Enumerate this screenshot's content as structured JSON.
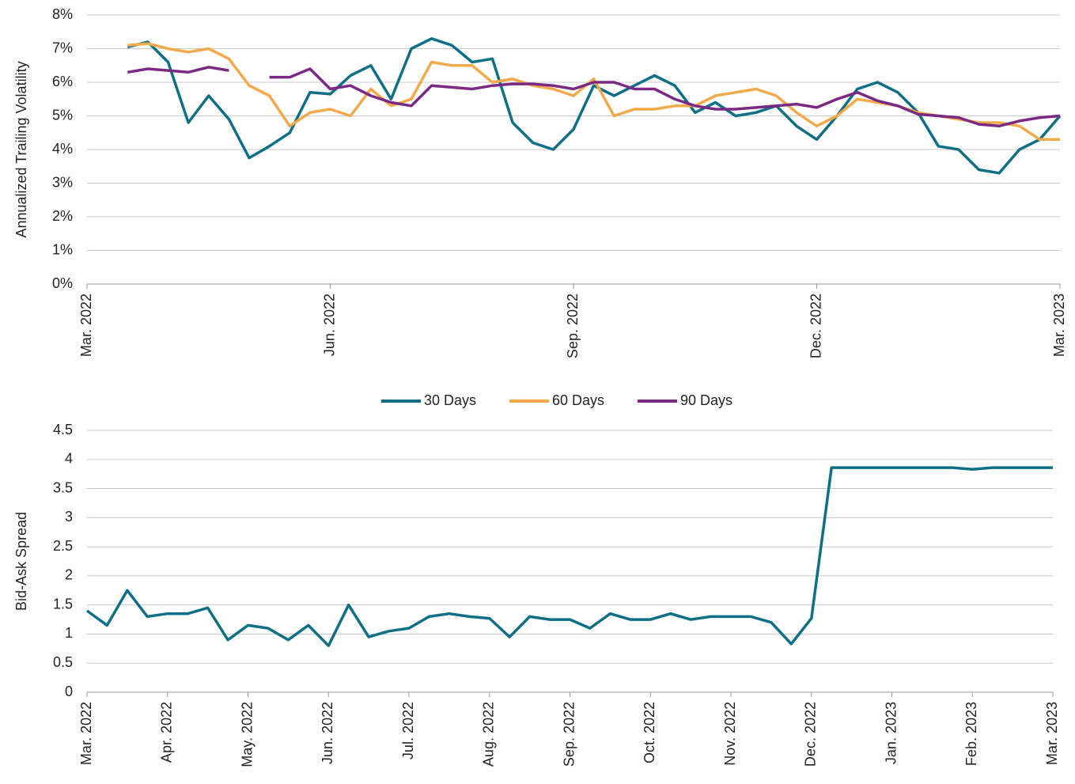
{
  "chart_data": [
    {
      "type": "line",
      "ylabel": "Annualized Trailing Volatility",
      "x": [
        0.5,
        0.75,
        1,
        1.25,
        1.5,
        1.75,
        2,
        2.25,
        2.5,
        2.75,
        3,
        3.25,
        3.5,
        3.75,
        4,
        4.25,
        4.5,
        4.75,
        5,
        5.25,
        5.5,
        5.75,
        6,
        6.25,
        6.5,
        6.75,
        7,
        7.25,
        7.5,
        7.75,
        8,
        8.25,
        8.5,
        8.75,
        9,
        9.25,
        9.5,
        9.75,
        10,
        10.25,
        10.5,
        10.75,
        11,
        11.25,
        11.5,
        11.75,
        12
      ],
      "xlim": [
        0,
        12
      ],
      "xticks": [
        {
          "value": 0,
          "label": "Mar. 2022"
        },
        {
          "value": 3,
          "label": "Jun. 2022"
        },
        {
          "value": 6,
          "label": "Sep. 2022"
        },
        {
          "value": 9,
          "label": "Dec. 2022"
        },
        {
          "value": 12,
          "label": "Mar. 2023"
        }
      ],
      "ylim": [
        0,
        8
      ],
      "yticks": [
        {
          "value": 0,
          "label": "0%"
        },
        {
          "value": 1,
          "label": "1%"
        },
        {
          "value": 2,
          "label": "2%"
        },
        {
          "value": 3,
          "label": "3%"
        },
        {
          "value": 4,
          "label": "4%"
        },
        {
          "value": 5,
          "label": "5%"
        },
        {
          "value": 6,
          "label": "6%"
        },
        {
          "value": 7,
          "label": "7%"
        },
        {
          "value": 8,
          "label": "8%"
        }
      ],
      "grid": true,
      "legend": "bottom",
      "series": [
        {
          "name": "30 Days",
          "color": "#0e6f86",
          "values": [
            7.05,
            7.2,
            6.6,
            4.8,
            5.6,
            4.9,
            3.75,
            4.1,
            4.5,
            5.7,
            5.65,
            6.2,
            6.5,
            5.5,
            7.0,
            7.3,
            7.1,
            6.6,
            6.7,
            4.8,
            4.2,
            4.0,
            4.6,
            5.9,
            5.6,
            5.9,
            6.2,
            5.9,
            5.1,
            5.4,
            5.0,
            5.1,
            5.3,
            4.7,
            4.3,
            5.0,
            5.8,
            6.0,
            5.7,
            5.1,
            4.1,
            4.0,
            3.4,
            3.3,
            4.0,
            4.3,
            5.0
          ]
        },
        {
          "name": "60 Days",
          "color": "#f2a94a",
          "values": [
            7.1,
            7.15,
            7.0,
            6.9,
            7.0,
            6.7,
            5.9,
            5.6,
            4.7,
            5.1,
            5.2,
            5.0,
            5.8,
            5.3,
            5.5,
            6.6,
            6.5,
            6.5,
            6.0,
            6.1,
            5.9,
            5.8,
            5.6,
            6.1,
            5.0,
            5.2,
            5.2,
            5.3,
            5.3,
            5.6,
            5.7,
            5.8,
            5.6,
            5.1,
            4.7,
            5.0,
            5.5,
            5.4,
            5.3,
            5.1,
            5.0,
            4.9,
            4.8,
            4.8,
            4.7,
            4.3,
            4.3
          ]
        },
        {
          "name": "90 Days",
          "color": "#7a2a83",
          "values": [
            6.3,
            6.4,
            6.35,
            6.3,
            6.45,
            6.35,
            null,
            6.15,
            6.15,
            6.4,
            5.8,
            5.9,
            5.6,
            5.4,
            5.3,
            5.9,
            5.85,
            5.8,
            5.9,
            5.95,
            5.95,
            5.9,
            5.8,
            6.0,
            6.0,
            5.8,
            5.8,
            5.5,
            5.3,
            5.2,
            5.2,
            5.25,
            5.3,
            5.35,
            5.25,
            5.5,
            5.7,
            5.45,
            5.3,
            5.05,
            5.0,
            4.95,
            4.75,
            4.7,
            4.85,
            4.95,
            5.0
          ]
        }
      ]
    },
    {
      "type": "line",
      "ylabel": "Bid-Ask Spread",
      "x": [
        0,
        0.25,
        0.5,
        0.75,
        1,
        1.25,
        1.5,
        1.75,
        2,
        2.25,
        2.5,
        2.75,
        3,
        3.25,
        3.5,
        3.75,
        4,
        4.25,
        4.5,
        4.75,
        5,
        5.25,
        5.5,
        5.75,
        6,
        6.25,
        6.5,
        6.75,
        7,
        7.25,
        7.5,
        7.75,
        8,
        8.25,
        8.5,
        8.75,
        9,
        9.25,
        9.5,
        9.75,
        10,
        10.25,
        10.5,
        10.75,
        11,
        11.25,
        11.5,
        11.75,
        12
      ],
      "xlim": [
        0,
        12
      ],
      "xticks": [
        {
          "value": 0,
          "label": "Mar. 2022"
        },
        {
          "value": 1,
          "label": "Apr. 2022"
        },
        {
          "value": 2,
          "label": "May. 2022"
        },
        {
          "value": 3,
          "label": "Jun. 2022"
        },
        {
          "value": 4,
          "label": "Jul. 2022"
        },
        {
          "value": 5,
          "label": "Aug. 2022"
        },
        {
          "value": 6,
          "label": "Sep. 2022"
        },
        {
          "value": 7,
          "label": "Oct. 2022"
        },
        {
          "value": 8,
          "label": "Nov. 2022"
        },
        {
          "value": 9,
          "label": "Dec. 2022"
        },
        {
          "value": 10,
          "label": "Jan. 2023"
        },
        {
          "value": 11,
          "label": "Feb. 2023"
        },
        {
          "value": 12,
          "label": "Mar. 2023"
        }
      ],
      "ylim": [
        0,
        4.5
      ],
      "yticks": [
        0,
        0.5,
        1,
        1.5,
        2,
        2.5,
        3,
        3.5,
        4,
        4.5
      ],
      "grid": true,
      "series": [
        {
          "color": "#0e6f86",
          "values": [
            1.4,
            1.15,
            1.75,
            1.3,
            1.35,
            1.35,
            1.45,
            0.9,
            1.15,
            1.1,
            0.9,
            1.15,
            0.8,
            1.5,
            0.95,
            1.05,
            1.1,
            1.3,
            1.35,
            1.3,
            1.27,
            0.95,
            1.3,
            1.25,
            1.25,
            1.1,
            1.35,
            1.25,
            1.25,
            1.35,
            1.25,
            1.3,
            1.3,
            1.3,
            1.2,
            0.83,
            1.27,
            3.86,
            3.86,
            3.86,
            3.86,
            3.86,
            3.86,
            3.86,
            3.83,
            3.86,
            3.86,
            3.86,
            3.86
          ]
        }
      ]
    }
  ]
}
